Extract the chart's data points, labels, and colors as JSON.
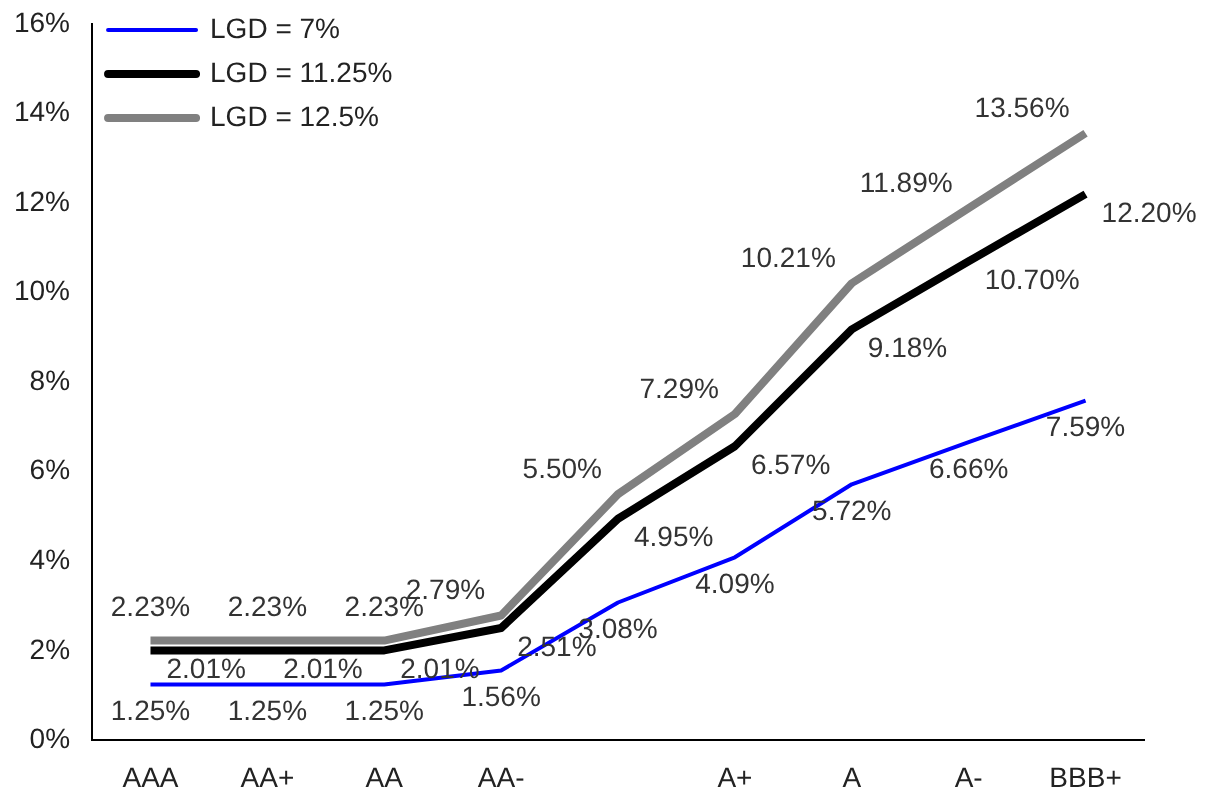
{
  "chart_data": {
    "type": "line",
    "categories": [
      "AAA",
      "AA+",
      "AA",
      "AA-",
      null,
      "A+",
      "A",
      "A-",
      "BBB+"
    ],
    "series": [
      {
        "name": "LGD = 7%",
        "color": "#0000ff",
        "values": [
          1.25,
          1.25,
          1.25,
          1.56,
          3.08,
          4.09,
          5.72,
          6.66,
          7.59
        ]
      },
      {
        "name": "LGD = 11.25%",
        "color": "#000000",
        "values": [
          2.01,
          2.01,
          2.01,
          2.51,
          4.95,
          6.57,
          9.18,
          10.7,
          12.2
        ]
      },
      {
        "name": "LGD = 12.5%",
        "color": "#808080",
        "values": [
          2.23,
          2.23,
          2.23,
          2.79,
          5.5,
          7.29,
          10.21,
          11.89,
          13.56
        ]
      }
    ],
    "ylim": [
      0,
      16
    ],
    "yticks": [
      {
        "value": 0,
        "label": "0%"
      },
      {
        "value": 2,
        "label": "2%"
      },
      {
        "value": 4,
        "label": "4%"
      },
      {
        "value": 6,
        "label": "6%"
      },
      {
        "value": 8,
        "label": "8%"
      },
      {
        "value": 10,
        "label": "10%"
      },
      {
        "value": 12,
        "label": "12%"
      },
      {
        "value": 14,
        "label": "14%"
      },
      {
        "value": 16,
        "label": "16%"
      }
    ],
    "value_labels": [
      [
        "1.25%",
        "1.25%",
        "1.25%",
        "1.56%",
        "3.08%",
        "4.09%",
        "5.72%",
        "6.66%",
        "7.59%"
      ],
      [
        "2.01%",
        "2.01%",
        "2.01%",
        "2.51%",
        "4.95%",
        "6.57%",
        "9.18%",
        "10.70%",
        "12.20%"
      ],
      [
        "2.23%",
        "2.23%",
        "2.23%",
        "2.79%",
        "5.50%",
        "7.29%",
        "10.21%",
        "11.89%",
        "13.56%"
      ]
    ],
    "legend": "top left",
    "grid": false,
    "marker": "none",
    "line_style": "solid"
  }
}
